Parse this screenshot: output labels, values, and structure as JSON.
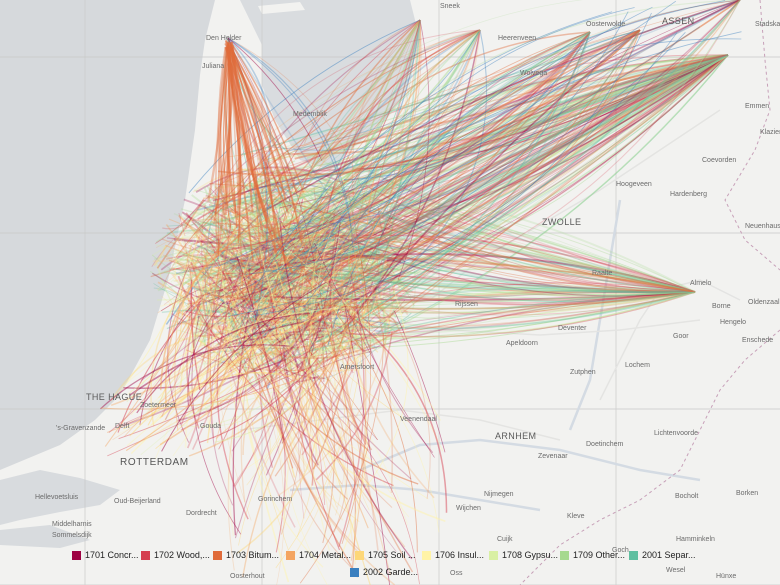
{
  "places": [
    {
      "name": "Sneek",
      "cls": "place"
    },
    {
      "name": "Oosterwolde",
      "cls": "place"
    },
    {
      "name": "ASSEN",
      "cls": "place big"
    },
    {
      "name": "Stadskanaal",
      "cls": "place"
    },
    {
      "name": "Den Helder",
      "cls": "place"
    },
    {
      "name": "Heerenveen",
      "cls": "place"
    },
    {
      "name": "Juliana",
      "cls": "place"
    },
    {
      "name": "Wolvega",
      "cls": "place"
    },
    {
      "name": "Emmen",
      "cls": "place"
    },
    {
      "name": "Medemblik",
      "cls": "place"
    },
    {
      "name": "Klazienaveen",
      "cls": "place"
    },
    {
      "name": "Coevorden",
      "cls": "place"
    },
    {
      "name": "Hoogeveen",
      "cls": "place"
    },
    {
      "name": "Hardenberg",
      "cls": "place"
    },
    {
      "name": "ZWOLLE",
      "cls": "place big"
    },
    {
      "name": "Neuenhaus",
      "cls": "place"
    },
    {
      "name": "Raalte",
      "cls": "place"
    },
    {
      "name": "Almelo",
      "cls": "place"
    },
    {
      "name": "Rijssen",
      "cls": "place"
    },
    {
      "name": "Borne",
      "cls": "place"
    },
    {
      "name": "Oldenzaal",
      "cls": "place"
    },
    {
      "name": "Hengelo",
      "cls": "place"
    },
    {
      "name": "Enschede",
      "cls": "place"
    },
    {
      "name": "Deventer",
      "cls": "place"
    },
    {
      "name": "Goor",
      "cls": "place"
    },
    {
      "name": "Apeldoorn",
      "cls": "place"
    },
    {
      "name": "Lochem",
      "cls": "place"
    },
    {
      "name": "Amersfoort",
      "cls": "place"
    },
    {
      "name": "Zutphen",
      "cls": "place"
    },
    {
      "name": "THE HAGUE",
      "cls": "place big"
    },
    {
      "name": "Zoetermeer",
      "cls": "place"
    },
    {
      "name": "'s-Gravenzande",
      "cls": "place"
    },
    {
      "name": "Delft",
      "cls": "place"
    },
    {
      "name": "Gouda",
      "cls": "place"
    },
    {
      "name": "Veenendaal",
      "cls": "place"
    },
    {
      "name": "ARNHEM",
      "cls": "place big"
    },
    {
      "name": "Doetinchem",
      "cls": "place"
    },
    {
      "name": "Lichtenvoorde",
      "cls": "place"
    },
    {
      "name": "ROTTERDAM",
      "cls": "place xl"
    },
    {
      "name": "Zevenaar",
      "cls": "place"
    },
    {
      "name": "Hellevoetsluis",
      "cls": "place"
    },
    {
      "name": "Oud-Beijerland",
      "cls": "place"
    },
    {
      "name": "Dordrecht",
      "cls": "place"
    },
    {
      "name": "Gorinchem",
      "cls": "place"
    },
    {
      "name": "Nijmegen",
      "cls": "place"
    },
    {
      "name": "Kleve",
      "cls": "place"
    },
    {
      "name": "Bocholt",
      "cls": "place"
    },
    {
      "name": "Borken",
      "cls": "place"
    },
    {
      "name": "Middelharnis",
      "cls": "place"
    },
    {
      "name": "Sommelsdijk",
      "cls": "place"
    },
    {
      "name": "Wijchen",
      "cls": "place"
    },
    {
      "name": "Cuijk",
      "cls": "place"
    },
    {
      "name": "Goch",
      "cls": "place"
    },
    {
      "name": "Hamminkeln",
      "cls": "place"
    },
    {
      "name": "Oss",
      "cls": "place"
    },
    {
      "name": "Wesel",
      "cls": "place"
    },
    {
      "name": "Oosterhout",
      "cls": "place"
    },
    {
      "name": "Hünxe",
      "cls": "place"
    }
  ],
  "legend": [
    {
      "label": "1701 Concr...",
      "color": "#9e0142"
    },
    {
      "label": "1702 Wood,...",
      "color": "#d53e4f"
    },
    {
      "label": "1703 Bitum...",
      "color": "#e06b3a"
    },
    {
      "label": "1704 Metal...",
      "color": "#f4a460"
    },
    {
      "label": "1705 Soil ...",
      "color": "#fdd778"
    },
    {
      "label": "1706 Insul...",
      "color": "#fff3a6"
    },
    {
      "label": "1708 Gypsu...",
      "color": "#d9f0a3"
    },
    {
      "label": "1709 Other...",
      "color": "#a6d98f"
    },
    {
      "label": "2001 Separ...",
      "color": "#5fbfa0"
    },
    {
      "label": "2002 Garde...",
      "color": "#3a7fbf"
    }
  ]
}
